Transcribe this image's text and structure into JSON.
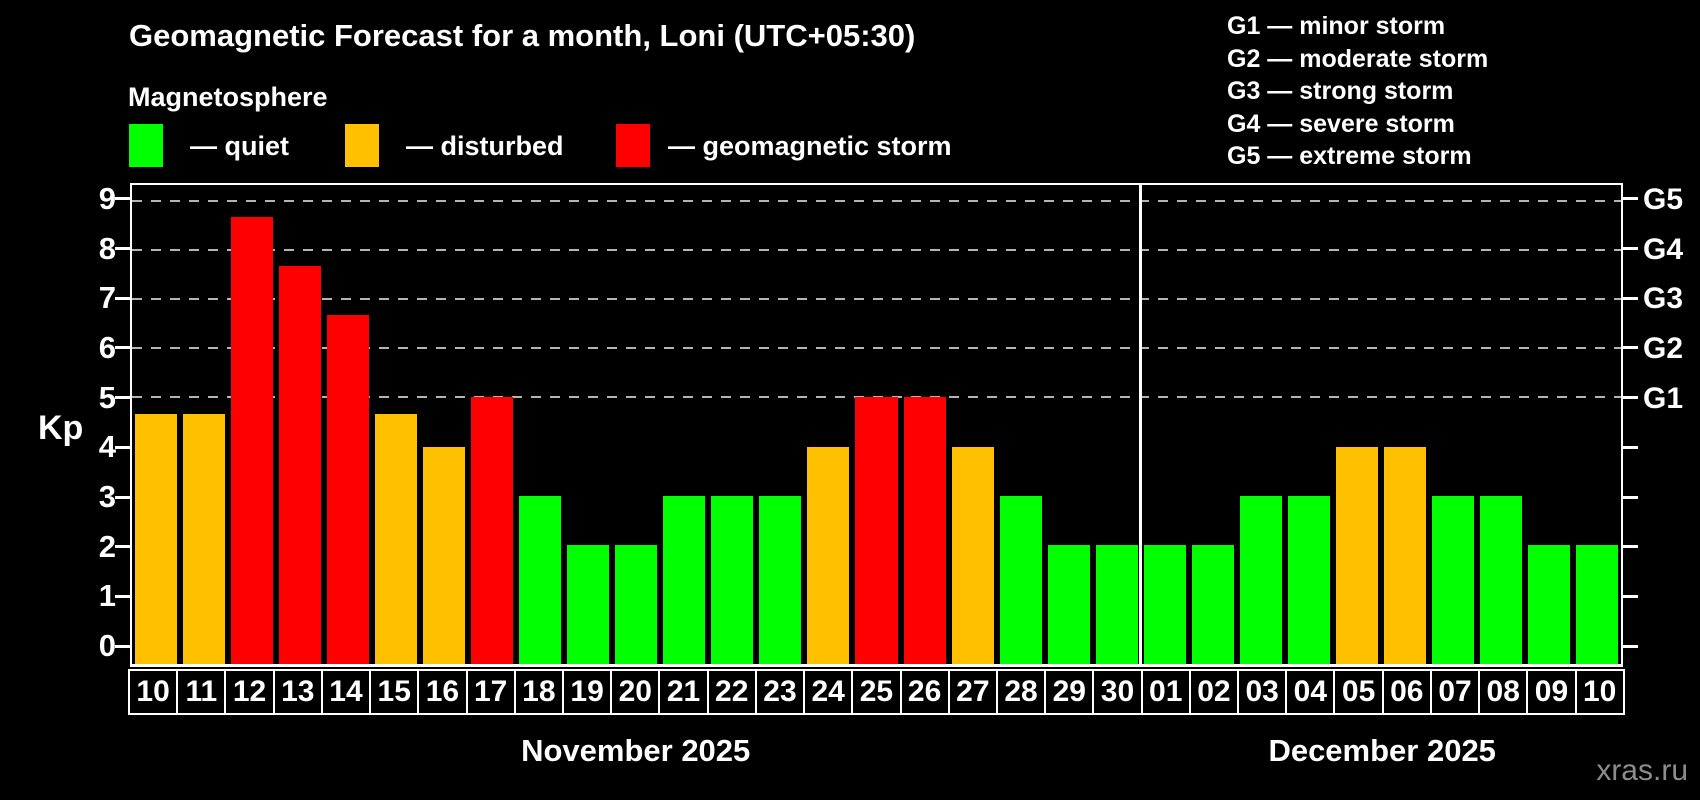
{
  "title": "Geomagnetic Forecast for a month, Loni (UTC+05:30)",
  "subtitle": "Magnetosphere",
  "legend": {
    "items": [
      {
        "key": "quiet",
        "label": "— quiet",
        "color": "#00ff00"
      },
      {
        "key": "disturbed",
        "label": "— disturbed",
        "color": "#ffc000"
      },
      {
        "key": "storm",
        "label": "— geomagnetic storm",
        "color": "#ff0000"
      }
    ]
  },
  "g_legend": [
    "G1 — minor storm",
    "G2 — moderate storm",
    "G3 — strong storm",
    "G4 — severe storm",
    "G5 — extreme storm"
  ],
  "watermark": "xras.ru",
  "chart_data": {
    "type": "bar",
    "title": "Geomagnetic Forecast for a month, Loni (UTC+05:30)",
    "ylabel": "Kp",
    "ylim": [
      -0.42,
      9.32
    ],
    "yticks": [
      0,
      1,
      2,
      3,
      4,
      5,
      6,
      7,
      8,
      9
    ],
    "grid_levels": [
      {
        "g": "G1",
        "kp": 5
      },
      {
        "g": "G2",
        "kp": 6
      },
      {
        "g": "G3",
        "kp": 7
      },
      {
        "g": "G4",
        "kp": 8
      },
      {
        "g": "G5",
        "kp": 9
      }
    ],
    "status_colors": {
      "quiet": "#00ff00",
      "disturbed": "#ffc000",
      "storm": "#ff0000"
    },
    "categories": [
      "10",
      "11",
      "12",
      "13",
      "14",
      "15",
      "16",
      "17",
      "18",
      "19",
      "20",
      "21",
      "22",
      "23",
      "24",
      "25",
      "26",
      "27",
      "28",
      "29",
      "30",
      "01",
      "02",
      "03",
      "04",
      "05",
      "06",
      "07",
      "08",
      "09",
      "10"
    ],
    "values": [
      4.67,
      4.67,
      8.67,
      7.67,
      6.67,
      4.67,
      4,
      5,
      3,
      2,
      2,
      3,
      3,
      3,
      4,
      5,
      5,
      4,
      3,
      2,
      2,
      2,
      2,
      3,
      3,
      4,
      4,
      3,
      3,
      2,
      2
    ],
    "statuses": [
      "disturbed",
      "disturbed",
      "storm",
      "storm",
      "storm",
      "disturbed",
      "disturbed",
      "storm",
      "quiet",
      "quiet",
      "quiet",
      "quiet",
      "quiet",
      "quiet",
      "disturbed",
      "storm",
      "storm",
      "disturbed",
      "quiet",
      "quiet",
      "quiet",
      "quiet",
      "quiet",
      "quiet",
      "quiet",
      "disturbed",
      "disturbed",
      "quiet",
      "quiet",
      "quiet",
      "quiet"
    ],
    "month_split_index": 21,
    "months": [
      "November 2025",
      "December 2025"
    ],
    "grid": true,
    "legend_position": "top"
  }
}
